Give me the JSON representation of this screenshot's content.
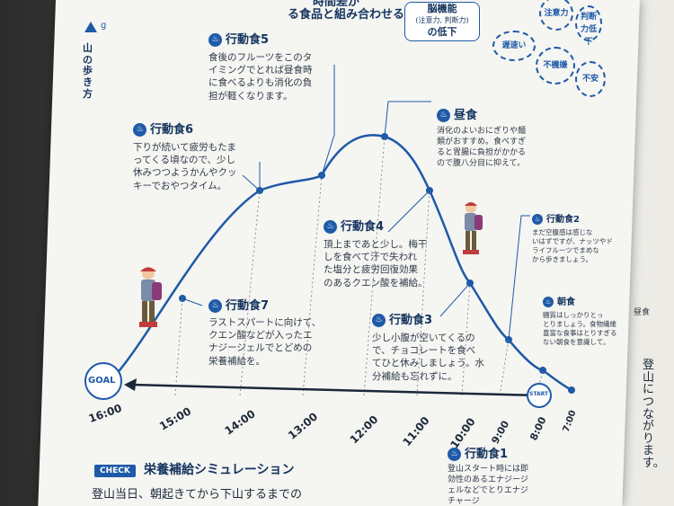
{
  "header": {
    "top_text_1": "時間差が",
    "top_text_2": "る食品と組み合わせる。",
    "brain_label": "脳機能",
    "brain_sub": "(注意力, 判断力)",
    "brain_down": "の低下",
    "effects": [
      "遅速い",
      "不機嫌",
      "不安",
      "注意力",
      "判断力低下"
    ]
  },
  "sidebar": {
    "page_letter": "g",
    "section": "山の歩き方"
  },
  "notes": {
    "f5_title": "行動食5",
    "f5_text": "食後のフルーツをこのタ\nイミングでとれば昼食時\nに食べるよりも消化の負\n担が軽くなります。",
    "f6_title": "行動食6",
    "f6_text": "下りが続いて疲労もたま\nってくる頃なので、少し\n休みつつようかんやクッ\nキーでおやつタイム。",
    "lunch_title": "昼食",
    "lunch_text": "消化のよいおにぎりや麺\n類がおすすめ。食べすぎ\nると胃腸に負担がかかる\nので腹八分目に抑えて。",
    "f4_title": "行動食4",
    "f4_text": "頂上まであと少し。梅干\nしを食べて汗で失われ\nた塩分と疲労回復効果\nのあるクエン酸を補給。",
    "f7_title": "行動食7",
    "f7_text": "ラストスパートに向けて、\nクエン酸などが入ったエ\nナジージェルでとどめの\n栄養補給を。",
    "f3_title": "行動食3",
    "f3_text": "少し小腹が空いてくるの\nで、チョコレートを食べ\nてひと休みしましょう。水\n分補給も忘れずに。",
    "f2_title": "行動食2",
    "f2_text": "まだ空腹感は感じな\nいはずですが、ナッツやド\nライフルーツでまめな\nから歩きましょう。",
    "bk_title": "朝食",
    "bk_text": "糖質はしっかりとっ\nとりましょう。食物繊維\n豊富な食事はとりすぎる\nない朝食を意識して。",
    "f1_title": "行動食1",
    "f1_text": "登山スタート時には即\n効性のあるエナジージ\nェルなどでとりエナジ\nチャージ"
  },
  "timeline": {
    "goal": "GOAL",
    "start": "START",
    "times": [
      "16:00",
      "15:00",
      "14:00",
      "13:00",
      "12:00",
      "11:00",
      "10:00",
      "9:00",
      "8:00",
      "7:00"
    ]
  },
  "footer": {
    "check": "CHECK",
    "heading": "栄養補給シミュレーション",
    "body": "登山当日、朝起きてから下山するまでの"
  },
  "right_page": {
    "label": "昼食",
    "vertical": "登山につながります。"
  },
  "colors": {
    "accent": "#1e5aa8",
    "dark": "#13335e"
  }
}
